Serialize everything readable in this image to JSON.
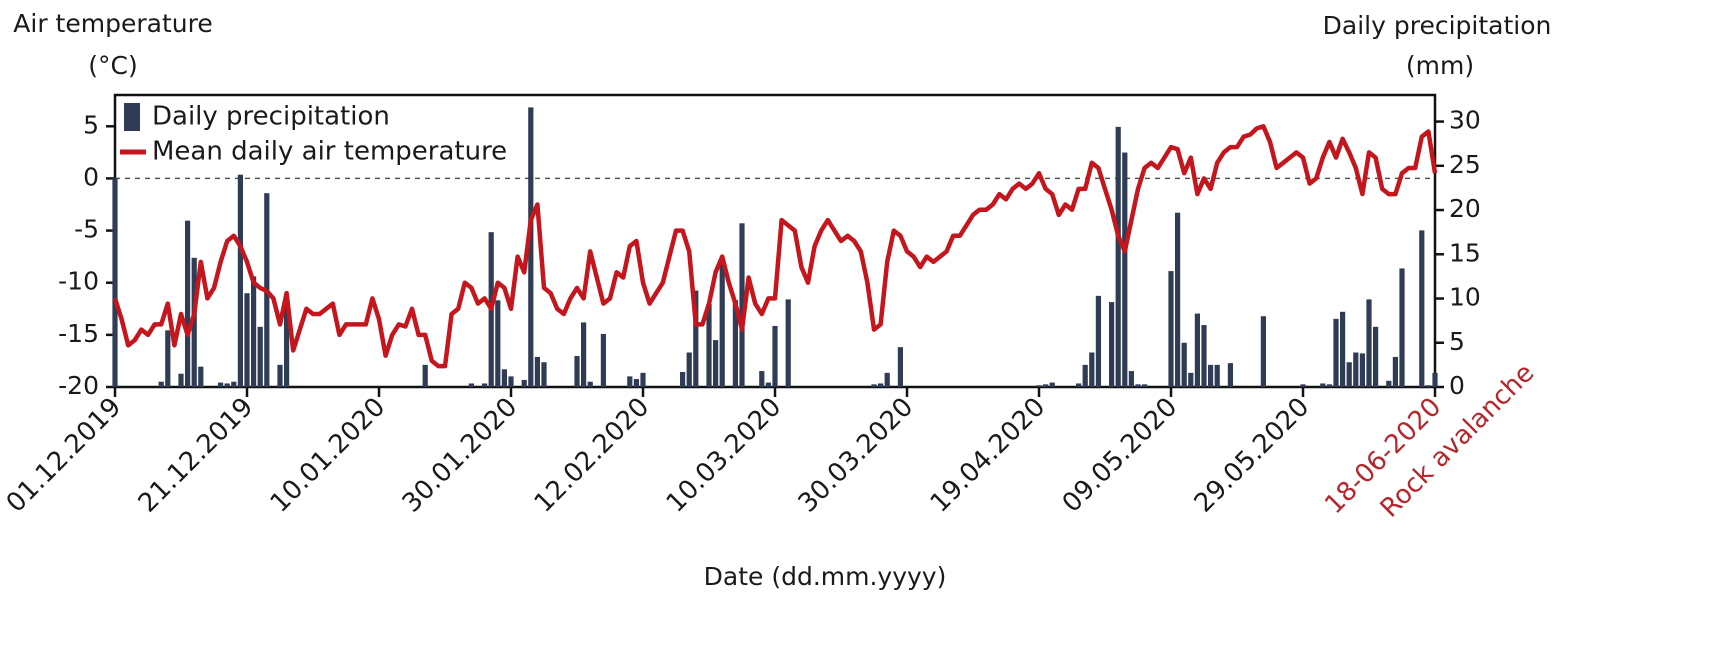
{
  "chart_data": {
    "type": "combo",
    "y_label": [
      "Air temperature",
      "(°C)"
    ],
    "y2_label": [
      "Daily precipitation",
      "(mm)"
    ],
    "x_label": "Date (dd.mm.yyyy)",
    "annotation": {
      "text": "Rock avalanche",
      "color": "#b5252b"
    },
    "legend": "upper left",
    "reference_line": 0,
    "categories": [
      "01.12.2019",
      null,
      null,
      null,
      null,
      null,
      null,
      null,
      null,
      null,
      null,
      null,
      null,
      null,
      null,
      null,
      null,
      null,
      null,
      null,
      "21.12.2019",
      null,
      null,
      null,
      null,
      null,
      null,
      null,
      null,
      null,
      null,
      null,
      null,
      null,
      null,
      null,
      null,
      null,
      null,
      null,
      "10.01.2020",
      null,
      null,
      null,
      null,
      null,
      null,
      null,
      null,
      null,
      null,
      null,
      null,
      null,
      null,
      null,
      null,
      null,
      null,
      null,
      "30.01.2020",
      null,
      null,
      null,
      null,
      null,
      null,
      null,
      null,
      null,
      null,
      null,
      null,
      null,
      null,
      null,
      null,
      null,
      null,
      null,
      "12.02.2020",
      null,
      null,
      null,
      null,
      null,
      null,
      null,
      null,
      null,
      null,
      null,
      null,
      null,
      null,
      null,
      null,
      null,
      null,
      null,
      "10.03.2020",
      null,
      null,
      null,
      null,
      null,
      null,
      null,
      null,
      null,
      null,
      null,
      null,
      null,
      null,
      null,
      null,
      null,
      null,
      null,
      "30.03.2020",
      null,
      null,
      null,
      null,
      null,
      null,
      null,
      null,
      null,
      null,
      null,
      null,
      null,
      null,
      null,
      null,
      null,
      null,
      null,
      "19.04.2020",
      null,
      null,
      null,
      null,
      null,
      null,
      null,
      null,
      null,
      null,
      null,
      null,
      null,
      null,
      null,
      null,
      null,
      null,
      null,
      "09.05.2020",
      null,
      null,
      null,
      null,
      null,
      null,
      null,
      null,
      null,
      null,
      null,
      null,
      null,
      null,
      null,
      null,
      null,
      null,
      null,
      "29.05.2020",
      null,
      null,
      null,
      null,
      null,
      null,
      null,
      null,
      null,
      null,
      null,
      null,
      null,
      null,
      null,
      null,
      null,
      null,
      null,
      "18-06-2020"
    ],
    "series": [
      {
        "name": "Daily precipitation",
        "type": "bar",
        "axis": "y2",
        "color": "#2f3c55",
        "values": [
          23.6,
          0,
          0,
          0,
          0,
          0,
          0,
          0.6,
          6.4,
          0,
          1.5,
          18.8,
          14.6,
          2.3,
          0,
          0,
          0.5,
          0.4,
          0.6,
          24,
          10.6,
          12.5,
          6.8,
          21.9,
          0,
          2.5,
          9.2,
          0,
          0,
          0,
          0,
          0,
          0,
          0,
          0,
          0,
          0,
          0,
          0,
          0,
          0,
          0,
          0,
          0,
          0,
          0,
          0,
          2.5,
          0,
          0,
          0,
          0,
          0,
          0,
          0.4,
          0,
          0.4,
          17.5,
          9.8,
          2,
          1.2,
          0,
          0.8,
          31.6,
          3.4,
          2.8,
          0,
          0,
          0,
          0,
          3.5,
          7.3,
          0.6,
          0,
          6,
          0,
          0,
          0,
          1.2,
          0.9,
          1.6,
          0,
          0,
          0,
          0,
          0,
          1.7,
          3.9,
          10.9,
          0,
          9.4,
          5.3,
          14.3,
          0,
          9.8,
          18.5,
          0,
          0,
          1.8,
          0.5,
          6.9,
          0,
          9.9,
          0,
          0,
          0,
          0,
          0,
          0,
          0,
          0,
          0,
          0,
          0,
          0,
          0.3,
          0.4,
          1.6,
          0,
          4.5,
          0,
          0,
          0,
          0,
          0,
          0,
          0,
          0,
          0,
          0,
          0,
          0,
          0,
          0,
          0,
          0,
          0,
          0,
          0,
          0,
          0.2,
          0.3,
          0.5,
          0,
          0,
          0,
          0.4,
          2.5,
          3.9,
          10.3,
          0,
          9.6,
          29.4,
          26.5,
          1.8,
          0.3,
          0.3,
          0,
          0,
          0,
          13.1,
          19.7,
          5,
          1.6,
          8.3,
          7,
          2.5,
          2.5,
          0,
          2.7,
          0,
          0,
          0,
          0,
          8,
          0,
          0,
          0,
          0,
          0,
          0.3,
          0,
          0,
          0.4,
          0.3,
          7.7,
          8.5,
          2.8,
          3.9,
          3.8,
          9.9,
          6.8,
          0,
          0.7,
          3.4,
          13.4,
          0,
          0,
          17.7,
          0.2,
          1.6
        ]
      },
      {
        "name": "Mean daily air temperature",
        "type": "line",
        "axis": "y",
        "color": "#c4161c",
        "values": [
          -11.5,
          -13.5,
          -16,
          -15.5,
          -14.5,
          -15,
          -14,
          -14,
          -12,
          -16,
          -13,
          -15,
          -13,
          -8,
          -11.5,
          -10.5,
          -8,
          -6,
          -5.5,
          -6.5,
          -8,
          -10,
          -10.5,
          -10.8,
          -11.5,
          -14,
          -11,
          -16.5,
          -14.5,
          -12.5,
          -13,
          -13,
          -12.5,
          -12,
          -15,
          -14,
          -14,
          -14,
          -14,
          -11.5,
          -13.5,
          -17,
          -15,
          -14,
          -14.2,
          -12.5,
          -15,
          -15,
          -17.5,
          -18,
          -18,
          -13,
          -12.5,
          -10,
          -10.5,
          -12,
          -11.5,
          -12.5,
          -10,
          -10.5,
          -12.5,
          -7.5,
          -9,
          -4,
          -2.5,
          -10.5,
          -11,
          -12.5,
          -13,
          -11.5,
          -10.5,
          -11.5,
          -7,
          -9.5,
          -12,
          -11.5,
          -9,
          -9.5,
          -6.5,
          -6,
          -10,
          -12,
          -11,
          -10,
          -7.5,
          -5,
          -5,
          -7,
          -14,
          -14,
          -12,
          -9,
          -7.5,
          -10,
          -12,
          -14.5,
          -9.5,
          -12,
          -13,
          -11.5,
          -11.5,
          -4,
          -4.5,
          -5,
          -8.5,
          -10,
          -6.5,
          -5,
          -4,
          -5,
          -6,
          -5.5,
          -6,
          -7,
          -10,
          -14.5,
          -14,
          -8,
          -5,
          -5.5,
          -7,
          -7.5,
          -8.5,
          -7.5,
          -8,
          -7.5,
          -7,
          -5.5,
          -5.5,
          -4.5,
          -3.5,
          -3,
          -3,
          -2.5,
          -1.5,
          -2,
          -1,
          -0.5,
          -1,
          -0.5,
          0.5,
          -1,
          -1.5,
          -3.5,
          -2.5,
          -3,
          -1,
          -1,
          1.5,
          1,
          -1,
          -3,
          -5.5,
          -7,
          -4,
          -1,
          1,
          1.5,
          1,
          2,
          3,
          2.8,
          0.5,
          2,
          -1.5,
          0,
          -1,
          1.5,
          2.5,
          3,
          3,
          4,
          4.2,
          4.8,
          5,
          3.5,
          1,
          1.5,
          2,
          2.5,
          2,
          -0.5,
          0,
          2,
          3.5,
          2,
          3.8,
          2.5,
          1,
          -1.5,
          2.5,
          2,
          -1,
          -1.5,
          -1.5,
          0.5,
          1,
          1,
          4,
          4.5,
          0.5
        ]
      }
    ],
    "ylim": [
      -20,
      8
    ],
    "yticks": [
      -20,
      -15,
      -10,
      -5,
      0,
      5
    ],
    "y2lim": [
      0,
      33
    ],
    "y2ticks": [
      0,
      5,
      10,
      15,
      20,
      25,
      30
    ]
  }
}
